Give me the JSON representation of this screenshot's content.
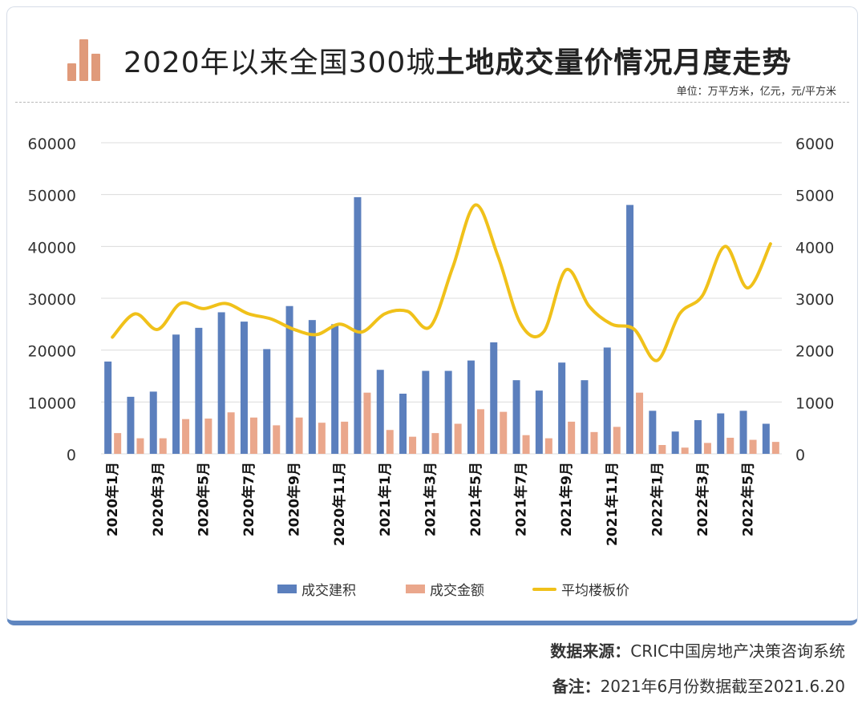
{
  "title": {
    "prefix": "2020年以来全国300城",
    "bold": "土地成交量价情况月度走势"
  },
  "unit_note": "单位：万平方米，亿元，元/平方米",
  "legend": {
    "area_label": "成交建积",
    "amount_label": "成交金额",
    "price_label": "平均楼板价"
  },
  "footer": {
    "source_label": "数据来源：",
    "source_value": "CRIC中国房地产决策咨询系统",
    "note_label": "备注：",
    "note_value": "2021年6月份数据截至2021.6.20"
  },
  "colors": {
    "area": "#5b7fbd",
    "amount": "#eaa78c",
    "price": "#f0c11a",
    "frame": "#5f86c0",
    "icon": "#e09a7a"
  },
  "chart_data": {
    "type": "bar",
    "categories": [
      "2020年1月",
      "2020年2月",
      "2020年3月",
      "2020年4月",
      "2020年5月",
      "2020年6月",
      "2020年7月",
      "2020年8月",
      "2020年9月",
      "2020年10月",
      "2020年11月",
      "2020年12月",
      "2021年1月",
      "2021年2月",
      "2021年3月",
      "2021年4月",
      "2021年5月",
      "2021年6月",
      "2021年7月",
      "2021年8月",
      "2021年9月",
      "2021年10月",
      "2021年11月",
      "2021年12月",
      "2022年1月",
      "2022年2月",
      "2022年3月",
      "2022年4月",
      "2022年5月",
      "2022年6月"
    ],
    "x_tick_labels": [
      "2020年1月",
      "2020年3月",
      "2020年5月",
      "2020年7月",
      "2020年9月",
      "2020年11月",
      "2021年1月",
      "2021年3月",
      "2021年5月",
      "2021年7月",
      "2021年9月",
      "2021年11月",
      "2022年1月",
      "2022年3月",
      "2022年5月"
    ],
    "series": [
      {
        "name": "成交建积",
        "axis": "left",
        "type": "bar",
        "values": [
          17800,
          11000,
          12000,
          23000,
          24300,
          27300,
          25500,
          20200,
          28500,
          25800,
          25000,
          49500,
          16200,
          11600,
          16000,
          16000,
          18000,
          21500,
          14200,
          12200,
          17600,
          14200,
          20500,
          48000,
          8300,
          4300,
          6500,
          7800,
          8300,
          5800
        ]
      },
      {
        "name": "成交金额",
        "axis": "right",
        "type": "bar",
        "values": [
          400,
          300,
          300,
          670,
          680,
          800,
          700,
          550,
          700,
          600,
          620,
          1180,
          460,
          330,
          400,
          580,
          860,
          810,
          360,
          300,
          620,
          420,
          520,
          1180,
          170,
          120,
          210,
          310,
          270,
          230
        ]
      },
      {
        "name": "平均楼板价",
        "axis": "right",
        "type": "line",
        "values": [
          2250,
          2700,
          2400,
          2900,
          2800,
          2900,
          2700,
          2600,
          2400,
          2300,
          2500,
          2350,
          2700,
          2750,
          2450,
          3600,
          4800,
          3800,
          2500,
          2350,
          3550,
          2850,
          2500,
          2400,
          1800,
          2700,
          3050,
          4000,
          3200,
          4050
        ]
      }
    ],
    "y_left": {
      "min": 0,
      "max": 60000,
      "ticks": [
        0,
        10000,
        20000,
        30000,
        40000,
        50000,
        60000
      ]
    },
    "y_right": {
      "min": 0,
      "max": 6000,
      "ticks": [
        0,
        1000,
        2000,
        3000,
        4000,
        5000,
        6000
      ]
    },
    "legend_position": "bottom"
  }
}
